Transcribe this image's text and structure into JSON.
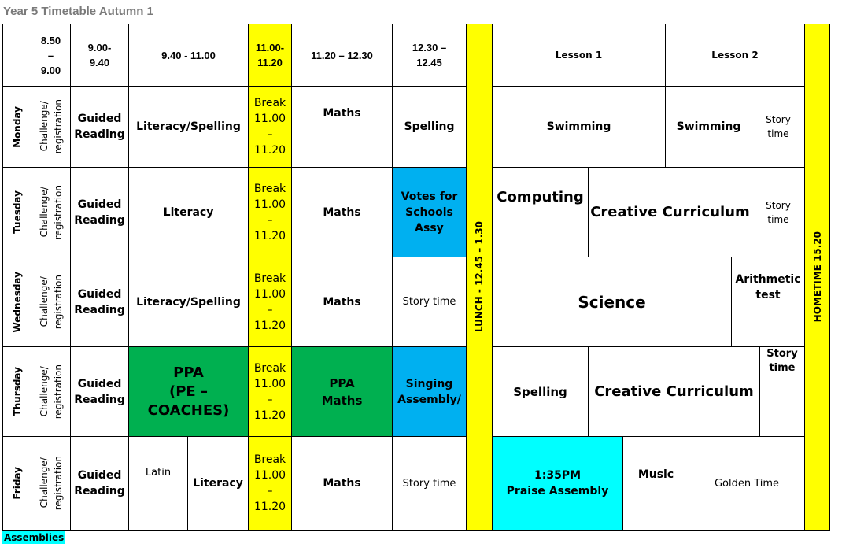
{
  "title": "Year 5 Timetable Autumn 1",
  "footer": "Assemblies",
  "header": {
    "t1": "8.50\n–\n9.00",
    "t2": "9.00-\n9.40",
    "t3": "9.40 - 11.00",
    "t4": "11.00-\n11.20",
    "t5": "11.20 – 12.30",
    "t6": "12.30 –\n12.45",
    "lesson1": "Lesson 1",
    "lesson2": "Lesson 2"
  },
  "lunch": "LUNCH - 12.45 – 1.30",
  "hometime": "HOMETIME 15.20",
  "registration": "Challenge/\nregistration",
  "break_text": "Break\n11.00\n–\n11.20",
  "days": {
    "mon": "Monday",
    "tue": "Tuesday",
    "wed": "Wednesday",
    "thu": "Thursday",
    "fri": "Friday"
  },
  "guided_reading": "Guided\nReading",
  "monday": {
    "p1": "Literacy/Spelling",
    "maths": "Maths",
    "spelling": "Spelling",
    "l1": "Swimming",
    "l2": "Swimming",
    "story": "Story\ntime"
  },
  "tuesday": {
    "p1": "Literacy",
    "maths": "Maths",
    "assembly": "Votes for\nSchools\nAssy",
    "l1": "Computing",
    "l2": "Creative Curriculum",
    "story": "Story\ntime"
  },
  "wednesday": {
    "p1": "Literacy/Spelling",
    "maths": "Maths",
    "story_mid": "Story time",
    "l1": "Science",
    "l2": "Arithmetic\ntest"
  },
  "thursday": {
    "p1": "PPA\n(PE –\nCOACHES)",
    "maths": "PPA\nMaths",
    "assembly": "Singing\nAssembly/",
    "l1": "Spelling",
    "l2": "Creative Curriculum",
    "story": "Story\ntime"
  },
  "friday": {
    "latin": "Latin",
    "literacy": "Literacy",
    "maths": "Maths",
    "story_mid": "Story time",
    "praise": "1:35PM\nPraise Assembly",
    "music": "Music",
    "golden": "Golden Time"
  },
  "colors": {
    "break": "#ffff00",
    "ppa": "#00b050",
    "assembly": "#00b0f0",
    "praise": "#00ffff",
    "title": "#7a7a7a"
  }
}
